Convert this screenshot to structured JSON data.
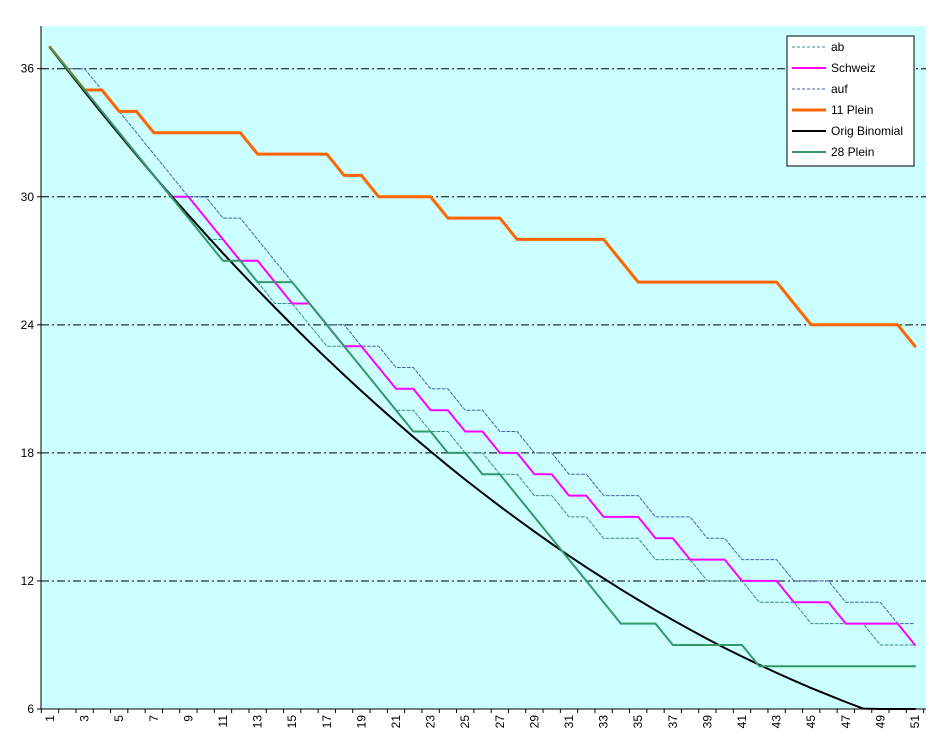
{
  "chart_data": {
    "type": "line",
    "title": "",
    "xlabel": "",
    "ylabel": "",
    "ylim": [
      6,
      38
    ],
    "yticks": [
      6,
      12,
      18,
      24,
      30,
      36
    ],
    "x": [
      1,
      2,
      3,
      4,
      5,
      6,
      7,
      8,
      9,
      10,
      11,
      12,
      13,
      14,
      15,
      16,
      17,
      18,
      19,
      20,
      21,
      22,
      23,
      24,
      25,
      26,
      27,
      28,
      29,
      30,
      31,
      32,
      33,
      34,
      35,
      36,
      37,
      38,
      39,
      40,
      41,
      42,
      43,
      44,
      45,
      46,
      47,
      48,
      49,
      50,
      51
    ],
    "xtick_labels": [
      "1",
      "3",
      "5",
      "7",
      "9",
      "11",
      "13",
      "15",
      "17",
      "19",
      "21",
      "23",
      "25",
      "27",
      "29",
      "31",
      "33",
      "35",
      "37",
      "39",
      "41",
      "43",
      "45",
      "47",
      "49",
      "51"
    ],
    "plot_background": "#ccffff",
    "grid": "horizontal dash-dot",
    "legend_position": "top-right",
    "series": [
      {
        "name": "ab",
        "color": "#3a8a8a",
        "style": "dotted",
        "width": 1,
        "values": [
          37,
          36,
          35,
          34,
          33,
          32,
          31,
          30,
          29,
          28,
          28,
          27,
          26,
          25,
          25,
          24,
          23,
          23,
          22,
          21,
          20,
          20,
          19,
          19,
          18,
          18,
          17,
          17,
          16,
          16,
          15,
          15,
          14,
          14,
          14,
          13,
          13,
          13,
          12,
          12,
          12,
          11,
          11,
          11,
          10,
          10,
          10,
          10,
          9,
          9,
          9
        ]
      },
      {
        "name": "Schweiz",
        "color": "#ff00ff",
        "style": "solid",
        "width": 2,
        "values": [
          37,
          36,
          35,
          34,
          33,
          32,
          31,
          30,
          30,
          29,
          28,
          27,
          27,
          26,
          25,
          25,
          24,
          23,
          23,
          22,
          21,
          21,
          20,
          20,
          19,
          19,
          18,
          18,
          17,
          17,
          16,
          16,
          15,
          15,
          15,
          14,
          14,
          13,
          13,
          13,
          12,
          12,
          12,
          11,
          11,
          11,
          10,
          10,
          10,
          10,
          9
        ]
      },
      {
        "name": "auf",
        "color": "#4a5fb0",
        "style": "dotted",
        "width": 1,
        "values": [
          37,
          36,
          36,
          35,
          34,
          33,
          32,
          31,
          30,
          30,
          29,
          29,
          28,
          27,
          26,
          25,
          24,
          24,
          23,
          23,
          22,
          22,
          21,
          21,
          20,
          20,
          19,
          19,
          18,
          18,
          17,
          17,
          16,
          16,
          16,
          15,
          15,
          15,
          14,
          14,
          13,
          13,
          13,
          12,
          12,
          12,
          11,
          11,
          11,
          10,
          10
        ]
      },
      {
        "name": "11 Plein",
        "color": "#ff6600",
        "style": "solid",
        "width": 3,
        "values": [
          37,
          36,
          35,
          35,
          34,
          34,
          33,
          33,
          33,
          33,
          33,
          33,
          32,
          32,
          32,
          32,
          32,
          31,
          31,
          30,
          30,
          30,
          30,
          29,
          29,
          29,
          29,
          28,
          28,
          28,
          28,
          28,
          28,
          27,
          26,
          26,
          26,
          26,
          26,
          26,
          26,
          26,
          26,
          25,
          24,
          24,
          24,
          24,
          24,
          24,
          23
        ]
      },
      {
        "name": "Orig Binomial",
        "color": "#000000",
        "style": "solid",
        "width": 2,
        "values": [
          37,
          35.95,
          34.92,
          33.91,
          32.92,
          31.95,
          30.99,
          30.05,
          29.14,
          28.24,
          27.35,
          26.49,
          25.64,
          24.81,
          23.99,
          23.19,
          22.41,
          21.65,
          20.9,
          20.17,
          19.45,
          18.75,
          18.07,
          17.4,
          16.75,
          16.12,
          15.5,
          14.9,
          14.31,
          13.74,
          13.18,
          12.64,
          12.12,
          11.61,
          11.11,
          10.63,
          10.17,
          9.72,
          9.28,
          8.86,
          8.46,
          8.07,
          7.69,
          7.33,
          6.98,
          6.65,
          6.33,
          6.02,
          5.72,
          5.44,
          5.17
        ]
      },
      {
        "name": "28 Plein",
        "color": "#339966",
        "style": "solid",
        "width": 2,
        "values": [
          37,
          36,
          35,
          34,
          33,
          32,
          31,
          30,
          29,
          28,
          27,
          27,
          26,
          26,
          26,
          25,
          24,
          23,
          22,
          21,
          20,
          19,
          19,
          18,
          18,
          17,
          17,
          16,
          15,
          14,
          13,
          12,
          11,
          10,
          10,
          10,
          9,
          9,
          9,
          9,
          9,
          8,
          8,
          8,
          8,
          8,
          8,
          8,
          8,
          8,
          8
        ]
      }
    ]
  }
}
